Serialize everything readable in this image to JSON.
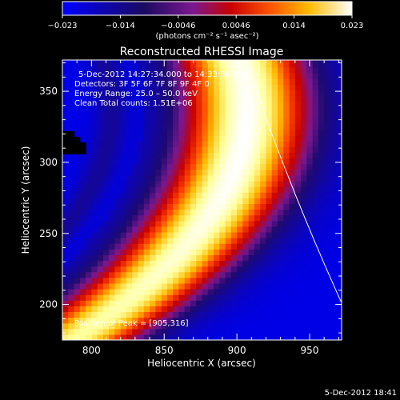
{
  "colorbar": {
    "tick_labels": [
      "−0.023",
      "−0.014",
      "−0.0046",
      "0.0046",
      "0.014",
      "0.023"
    ],
    "range": [
      -0.023,
      0.023
    ],
    "units": "(photons cm⁻² s⁻¹ asec⁻²)"
  },
  "chart_data": {
    "type": "heatmap",
    "title": "Reconstructed RHESSI Image",
    "xlabel": "Heliocentric X (arcsec)",
    "ylabel": "Heliocentric Y (arcsec)",
    "xlim": [
      780,
      972
    ],
    "ylim": [
      175,
      372
    ],
    "x_ticks": [
      800,
      850,
      900,
      950
    ],
    "y_ticks": [
      200,
      250,
      300,
      350
    ],
    "x_tick_labels": [
      "800",
      "850",
      "900",
      "950"
    ],
    "y_tick_labels": [
      "200",
      "250",
      "300",
      "350"
    ],
    "peak": [
      905,
      316
    ],
    "colormap": [
      "#0000e6",
      "#3a1070",
      "#7a1890",
      "#c80000",
      "#ff4400",
      "#ffbb00",
      "#ffffb0",
      "#ffffff"
    ],
    "annotations": {
      "time_range": "5-Dec-2012 14:27:34.000 to 14:33:34.000",
      "detectors": "Detectors: 3F 5F 6F 7F 8F 9F 4F 0",
      "energy": "Energy Range: 25.0 – 50.0 keV",
      "clean": "Clean     Total counts: 1.51E+06",
      "peak_text": "Position of Peak = [905,316]"
    }
  },
  "footer": {
    "timestamp": "5-Dec-2012 18:41"
  }
}
